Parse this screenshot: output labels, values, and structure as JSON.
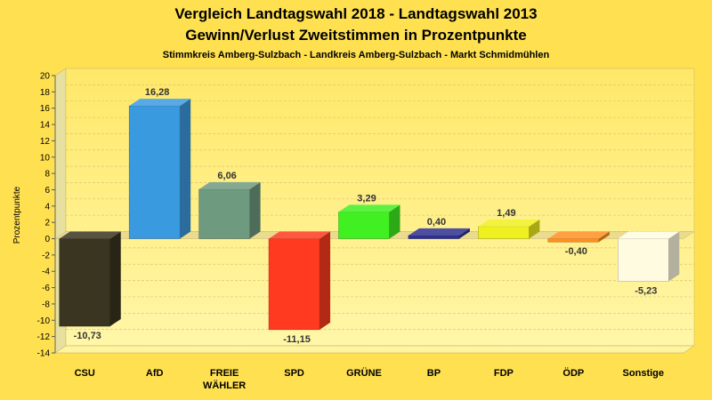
{
  "chart_data": {
    "type": "bar",
    "title": "Vergleich Landtagswahl 2018 - Landtagswahl 2013",
    "subtitle": "Gewinn/Verlust Zweitstimmen in Prozentpunkte",
    "subtitle2": "Stimmkreis Amberg-Sulzbach - Landkreis Amberg-Sulzbach - Markt Schmidmühlen",
    "ylabel": "Prozentpunkte",
    "xlabel": "",
    "ylim": [
      -14,
      20
    ],
    "yticks": [
      20,
      18,
      16,
      14,
      12,
      10,
      8,
      6,
      4,
      2,
      0,
      -2,
      -4,
      -6,
      -8,
      -10,
      -12,
      -14
    ],
    "categories": [
      "CSU",
      "AfD",
      "FREIE WÄHLER",
      "SPD",
      "GRÜNE",
      "BP",
      "FDP",
      "ÖDP",
      "Sonstige"
    ],
    "category_lines": [
      [
        "CSU"
      ],
      [
        "AfD"
      ],
      [
        "FREIE",
        "WÄHLER"
      ],
      [
        "SPD"
      ],
      [
        "GRÜNE"
      ],
      [
        "BP"
      ],
      [
        "FDP"
      ],
      [
        "ÖDP"
      ],
      [
        "Sonstige"
      ]
    ],
    "values": [
      -10.73,
      16.28,
      6.06,
      -11.15,
      3.29,
      0.4,
      1.49,
      -0.4,
      -5.23
    ],
    "value_labels": [
      "-10,73",
      "16,28",
      "6,06",
      "-11,15",
      "3,29",
      "0,40",
      "1,49",
      "-0,40",
      "-5,23"
    ],
    "colors": [
      "#3a3520",
      "#3a9ae0",
      "#6e9a80",
      "#ff3a20",
      "#40f020",
      "#303090",
      "#f0f020",
      "#ff9020",
      "#fffbe0"
    ],
    "grid": true,
    "legend": "none"
  }
}
